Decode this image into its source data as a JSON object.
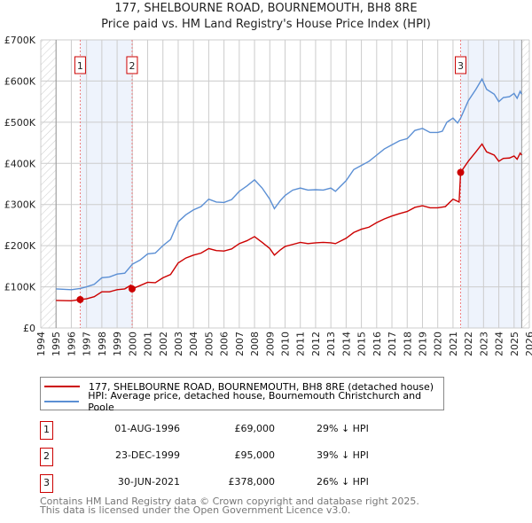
{
  "chart_data": {
    "type": "line",
    "title": "177, SHELBOURNE ROAD, BOURNEMOUTH, BH8 8RE",
    "subtitle": "Price paid vs. HM Land Registry's House Price Index (HPI)",
    "xlim": [
      1994,
      2026
    ],
    "ylim": [
      0,
      700000
    ],
    "y_ticks": [
      {
        "v": 0,
        "label": "£0"
      },
      {
        "v": 100000,
        "label": "£100K"
      },
      {
        "v": 200000,
        "label": "£200K"
      },
      {
        "v": 300000,
        "label": "£300K"
      },
      {
        "v": 400000,
        "label": "£400K"
      },
      {
        "v": 500000,
        "label": "£500K"
      },
      {
        "v": 600000,
        "label": "£600K"
      },
      {
        "v": 700000,
        "label": "£700K"
      }
    ],
    "x_ticks": [
      "1994",
      "1995",
      "1996",
      "1997",
      "1998",
      "1999",
      "2000",
      "2001",
      "2002",
      "2003",
      "2004",
      "2005",
      "2006",
      "2007",
      "2008",
      "2009",
      "2010",
      "2011",
      "2012",
      "2013",
      "2014",
      "2015",
      "2016",
      "2017",
      "2018",
      "2019",
      "2020",
      "2021",
      "2022",
      "2023",
      "2024",
      "2025",
      "2026"
    ],
    "grid": true,
    "data_range": [
      1995,
      2025.5
    ],
    "shaded_ranges": [
      [
        1996.58,
        1999.98
      ],
      [
        2021.5,
        2025.5
      ]
    ],
    "series": [
      {
        "name": "177, SHELBOURNE ROAD, BOURNEMOUTH, BH8 8RE (detached house)",
        "color": "#cc0000",
        "points": [
          [
            1995,
            67000
          ],
          [
            1996,
            66000
          ],
          [
            1996.58,
            69000
          ],
          [
            1997,
            71000
          ],
          [
            1997.5,
            76000
          ],
          [
            1998,
            88000
          ],
          [
            1998.5,
            88000
          ],
          [
            1999,
            93000
          ],
          [
            1999.5,
            95000
          ],
          [
            1999.9,
            104000
          ],
          [
            1999.98,
            95000
          ],
          [
            2000.5,
            103000
          ],
          [
            2001,
            111000
          ],
          [
            2001.5,
            110000
          ],
          [
            2002,
            122000
          ],
          [
            2002.5,
            130000
          ],
          [
            2003,
            158000
          ],
          [
            2003.5,
            170000
          ],
          [
            2004,
            177000
          ],
          [
            2004.5,
            182000
          ],
          [
            2005,
            193000
          ],
          [
            2005.5,
            188000
          ],
          [
            2006,
            187000
          ],
          [
            2006.5,
            192000
          ],
          [
            2007,
            205000
          ],
          [
            2007.5,
            212000
          ],
          [
            2008,
            222000
          ],
          [
            2008.5,
            208000
          ],
          [
            2009,
            193000
          ],
          [
            2009.3,
            177000
          ],
          [
            2009.7,
            190000
          ],
          [
            2010,
            198000
          ],
          [
            2010.5,
            203000
          ],
          [
            2011,
            208000
          ],
          [
            2011.5,
            205000
          ],
          [
            2012,
            207000
          ],
          [
            2012.5,
            208000
          ],
          [
            2013,
            207000
          ],
          [
            2013.3,
            205000
          ],
          [
            2014,
            218000
          ],
          [
            2014.5,
            232000
          ],
          [
            2015,
            240000
          ],
          [
            2015.5,
            245000
          ],
          [
            2016,
            256000
          ],
          [
            2016.5,
            265000
          ],
          [
            2017,
            272000
          ],
          [
            2017.5,
            278000
          ],
          [
            2018,
            283000
          ],
          [
            2018.5,
            293000
          ],
          [
            2019,
            297000
          ],
          [
            2019.5,
            292000
          ],
          [
            2020,
            292000
          ],
          [
            2020.5,
            295000
          ],
          [
            2021,
            313000
          ],
          [
            2021.4,
            306000
          ],
          [
            2021.5,
            378000
          ],
          [
            2022,
            405000
          ],
          [
            2022.5,
            428000
          ],
          [
            2022.9,
            447000
          ],
          [
            2023.2,
            428000
          ],
          [
            2023.7,
            420000
          ],
          [
            2024,
            405000
          ],
          [
            2024.3,
            412000
          ],
          [
            2024.7,
            413000
          ],
          [
            2025,
            418000
          ],
          [
            2025.2,
            410000
          ],
          [
            2025.4,
            425000
          ],
          [
            2025.5,
            420000
          ]
        ]
      },
      {
        "name": "HPI: Average price, detached house, Bournemouth Christchurch and Poole",
        "color": "#5b8fd4",
        "points": [
          [
            1995,
            95000
          ],
          [
            1996,
            93000
          ],
          [
            1996.58,
            96000
          ],
          [
            1997,
            100000
          ],
          [
            1997.5,
            106000
          ],
          [
            1998,
            122000
          ],
          [
            1998.5,
            124000
          ],
          [
            1999,
            131000
          ],
          [
            1999.5,
            133000
          ],
          [
            2000,
            155000
          ],
          [
            2000.5,
            165000
          ],
          [
            2001,
            180000
          ],
          [
            2001.5,
            182000
          ],
          [
            2002,
            200000
          ],
          [
            2002.5,
            215000
          ],
          [
            2003,
            258000
          ],
          [
            2003.5,
            275000
          ],
          [
            2004,
            287000
          ],
          [
            2004.5,
            295000
          ],
          [
            2005,
            313000
          ],
          [
            2005.5,
            306000
          ],
          [
            2006,
            305000
          ],
          [
            2006.5,
            312000
          ],
          [
            2007,
            332000
          ],
          [
            2007.5,
            345000
          ],
          [
            2008,
            360000
          ],
          [
            2008.5,
            340000
          ],
          [
            2009,
            313000
          ],
          [
            2009.3,
            290000
          ],
          [
            2009.7,
            310000
          ],
          [
            2010,
            322000
          ],
          [
            2010.5,
            335000
          ],
          [
            2011,
            340000
          ],
          [
            2011.5,
            335000
          ],
          [
            2012,
            336000
          ],
          [
            2012.5,
            335000
          ],
          [
            2013,
            340000
          ],
          [
            2013.3,
            332000
          ],
          [
            2014,
            358000
          ],
          [
            2014.5,
            385000
          ],
          [
            2015,
            395000
          ],
          [
            2015.5,
            405000
          ],
          [
            2016,
            420000
          ],
          [
            2016.5,
            435000
          ],
          [
            2017,
            445000
          ],
          [
            2017.5,
            455000
          ],
          [
            2018,
            460000
          ],
          [
            2018.5,
            480000
          ],
          [
            2019,
            485000
          ],
          [
            2019.5,
            475000
          ],
          [
            2020,
            475000
          ],
          [
            2020.3,
            478000
          ],
          [
            2020.6,
            500000
          ],
          [
            2021,
            510000
          ],
          [
            2021.3,
            498000
          ],
          [
            2021.5,
            510000
          ],
          [
            2022,
            552000
          ],
          [
            2022.5,
            580000
          ],
          [
            2022.9,
            605000
          ],
          [
            2023.2,
            580000
          ],
          [
            2023.7,
            568000
          ],
          [
            2024,
            550000
          ],
          [
            2024.3,
            560000
          ],
          [
            2024.7,
            562000
          ],
          [
            2025,
            570000
          ],
          [
            2025.2,
            558000
          ],
          [
            2025.4,
            575000
          ],
          [
            2025.5,
            568000
          ]
        ]
      }
    ],
    "sales": [
      {
        "num": "1",
        "x": 1996.58,
        "value": 69000,
        "date": "01-AUG-1996",
        "price": "£69,000",
        "hpi": "29% ↓ HPI"
      },
      {
        "num": "2",
        "x": 1999.98,
        "value": 95000,
        "date": "23-DEC-1999",
        "price": "£95,000",
        "hpi": "39% ↓ HPI"
      },
      {
        "num": "3",
        "x": 2021.5,
        "value": 378000,
        "date": "30-JUN-2021",
        "price": "£378,000",
        "hpi": "26% ↓ HPI"
      }
    ],
    "legend_position": "below"
  },
  "footer": {
    "line1": "Contains HM Land Registry data © Crown copyright and database right 2025.",
    "line2": "This data is licensed under the Open Government Licence v3.0."
  }
}
